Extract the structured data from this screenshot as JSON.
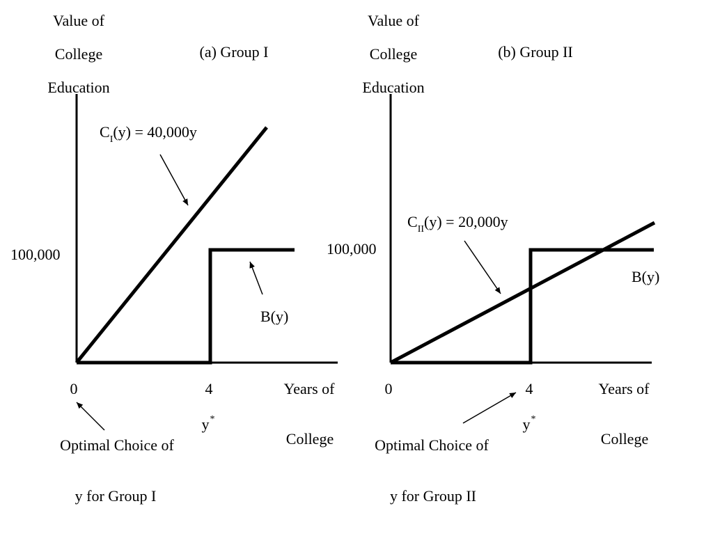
{
  "panels": [
    {
      "id": "group1",
      "title": "(a) Group I",
      "ylabel_lines": [
        "Value of",
        "College",
        "Education"
      ],
      "y_tick_label": "100,000",
      "x_tick_zero": "0",
      "x_tick_four": "4",
      "ystar": "y",
      "xlabel_lines": [
        "Years of",
        "College"
      ],
      "cost_main": "C",
      "cost_sub": "I",
      "cost_rest": "(y) = 40,000y",
      "benefit_label": "B(y)",
      "optimal_lines": [
        "Optimal Choice of",
        "y for Group I"
      ]
    },
    {
      "id": "group2",
      "title": "(b) Group II",
      "ylabel_lines": [
        "Value of",
        "College",
        "Education"
      ],
      "y_tick_label": "100,000",
      "x_tick_zero": "0",
      "x_tick_four": "4",
      "ystar": "y",
      "xlabel_lines": [
        "Years of",
        "College"
      ],
      "cost_main": "C",
      "cost_sub": "II",
      "cost_rest": "(y) = 20,000y",
      "benefit_label": "B(y)",
      "optimal_lines": [
        "Optimal Choice of",
        "y for Group II"
      ]
    }
  ]
}
